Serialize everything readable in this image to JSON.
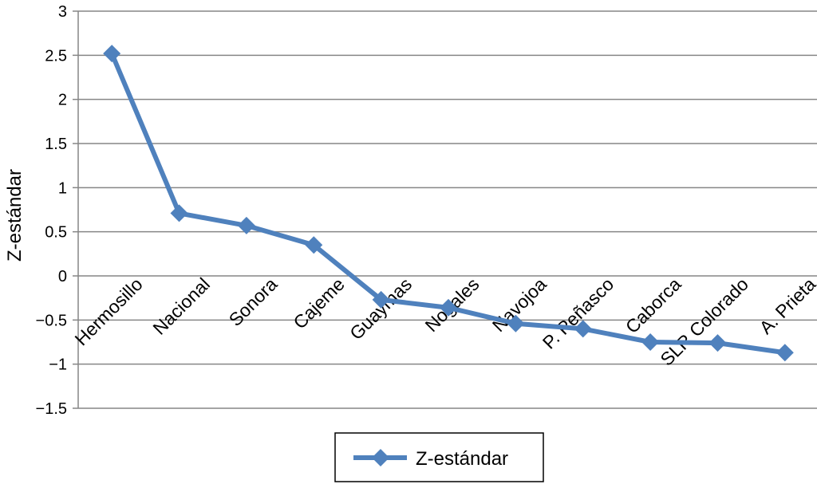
{
  "chart_data": {
    "type": "line",
    "categories": [
      "Hermosillo",
      "Nacional",
      "Sonora",
      "Cajeme",
      "Guaymas",
      "Nogales",
      "Navojoa",
      "P. Peñasco",
      "Caborca",
      "SLR Colorado",
      "A. Prieta"
    ],
    "series": [
      {
        "name": "Z-estándar",
        "values": [
          2.52,
          0.71,
          0.57,
          0.35,
          -0.27,
          -0.36,
          -0.54,
          -0.6,
          -0.75,
          -0.76,
          -0.87
        ],
        "color": "#4f81bd",
        "marker": "diamond"
      }
    ],
    "xlabel": "",
    "ylabel": "Z-estándar",
    "ylim": [
      -1.5,
      3
    ],
    "yticks": [
      3,
      2.5,
      2,
      1.5,
      1,
      0.5,
      0,
      -0.5,
      -1,
      -1.5
    ],
    "ytick_labels": [
      "3",
      "2.5",
      "2",
      "1.5",
      "1",
      "0.5",
      "0",
      "−0.5",
      "−1",
      "−1.5"
    ],
    "grid": "horizontal",
    "legend_position": "bottom",
    "axis_color": "#868686",
    "grid_color": "#868686"
  }
}
